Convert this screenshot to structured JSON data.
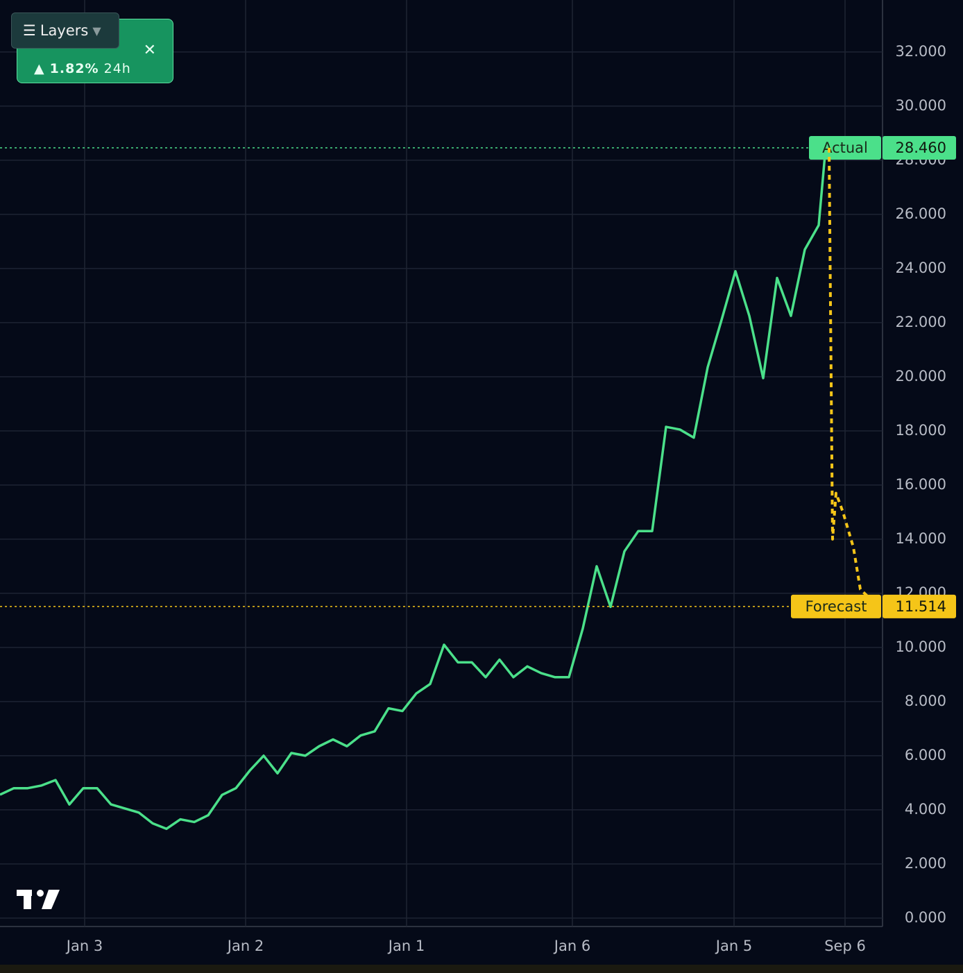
{
  "chart_data": {
    "type": "line",
    "xlim": [
      0,
      63.6
    ],
    "xticks": [
      {
        "value": 6.1,
        "label": "Jan 3"
      },
      {
        "value": 17.7,
        "label": "Jan 2"
      },
      {
        "value": 29.3,
        "label": "Jan 1"
      },
      {
        "value": 41.25,
        "label": "Jan 6"
      },
      {
        "value": 52.9,
        "label": "Jan 5"
      },
      {
        "value": 60.9,
        "label": "Sep 6"
      }
    ],
    "ylim": [
      -0.31,
      33.92
    ],
    "yticks": [
      {
        "value": 0,
        "label": "0.000"
      },
      {
        "value": 2,
        "label": "2.000"
      },
      {
        "value": 4,
        "label": "4.000"
      },
      {
        "value": 6,
        "label": "6.000"
      },
      {
        "value": 8,
        "label": "8.000"
      },
      {
        "value": 10,
        "label": "10.000"
      },
      {
        "value": 12,
        "label": "12.000"
      },
      {
        "value": 14,
        "label": "14.000"
      },
      {
        "value": 16,
        "label": "16.000"
      },
      {
        "value": 18,
        "label": "18.000"
      },
      {
        "value": 20,
        "label": "20.000"
      },
      {
        "value": 22,
        "label": "22.000"
      },
      {
        "value": 24,
        "label": "24.000"
      },
      {
        "value": 26,
        "label": "26.000"
      },
      {
        "value": 28,
        "label": "28.000"
      },
      {
        "value": 30,
        "label": "30.000"
      },
      {
        "value": 32,
        "label": "32.000"
      }
    ],
    "grid": true,
    "series": [
      {
        "name": "Actual",
        "color": "#4be08a",
        "dashed": false,
        "x": [
          0,
          1,
          2,
          3,
          4,
          5,
          6,
          7,
          8,
          9,
          10,
          11,
          12,
          13,
          14,
          15,
          16,
          17,
          18,
          19,
          20,
          21,
          22,
          23,
          24,
          25,
          26,
          27,
          28,
          29,
          30,
          31,
          32,
          33,
          34,
          35,
          36,
          37,
          38,
          39,
          40,
          41,
          42,
          43,
          44,
          45,
          46,
          47,
          48,
          49,
          50,
          51,
          52,
          53,
          54,
          55,
          56,
          57,
          58,
          59,
          59.5
        ],
        "values": [
          4.56,
          4.8,
          4.8,
          4.9,
          5.1,
          4.2,
          4.8,
          4.8,
          4.2,
          4.05,
          3.9,
          3.5,
          3.3,
          3.65,
          3.55,
          3.8,
          4.55,
          4.8,
          5.45,
          6.0,
          5.35,
          6.1,
          6.0,
          6.35,
          6.6,
          6.35,
          6.75,
          6.9,
          7.75,
          7.65,
          8.3,
          8.65,
          10.1,
          9.45,
          9.45,
          8.9,
          9.55,
          8.9,
          9.3,
          9.05,
          8.9,
          8.9,
          10.7,
          13.0,
          11.5,
          13.55,
          14.3,
          14.3,
          18.15,
          18.05,
          17.75,
          20.35,
          22.1,
          23.9,
          22.25,
          19.95,
          23.65,
          22.25,
          24.7,
          25.6,
          28.46
        ],
        "price_line": {
          "value": 28.46,
          "label": "28.460"
        }
      },
      {
        "name": "Forecast",
        "color": "#f5c518",
        "dashed": true,
        "x": [
          59.75,
          60,
          60.25,
          60.75,
          61.5,
          62,
          62.5
        ],
        "values": [
          28.46,
          14.0,
          15.7,
          15.0,
          13.7,
          12.15,
          11.9
        ],
        "price_line": {
          "value": 11.514,
          "label": "11.514"
        }
      }
    ]
  },
  "widget": {
    "layers_button": "Layers",
    "change": "1.82%",
    "period": "24h"
  }
}
